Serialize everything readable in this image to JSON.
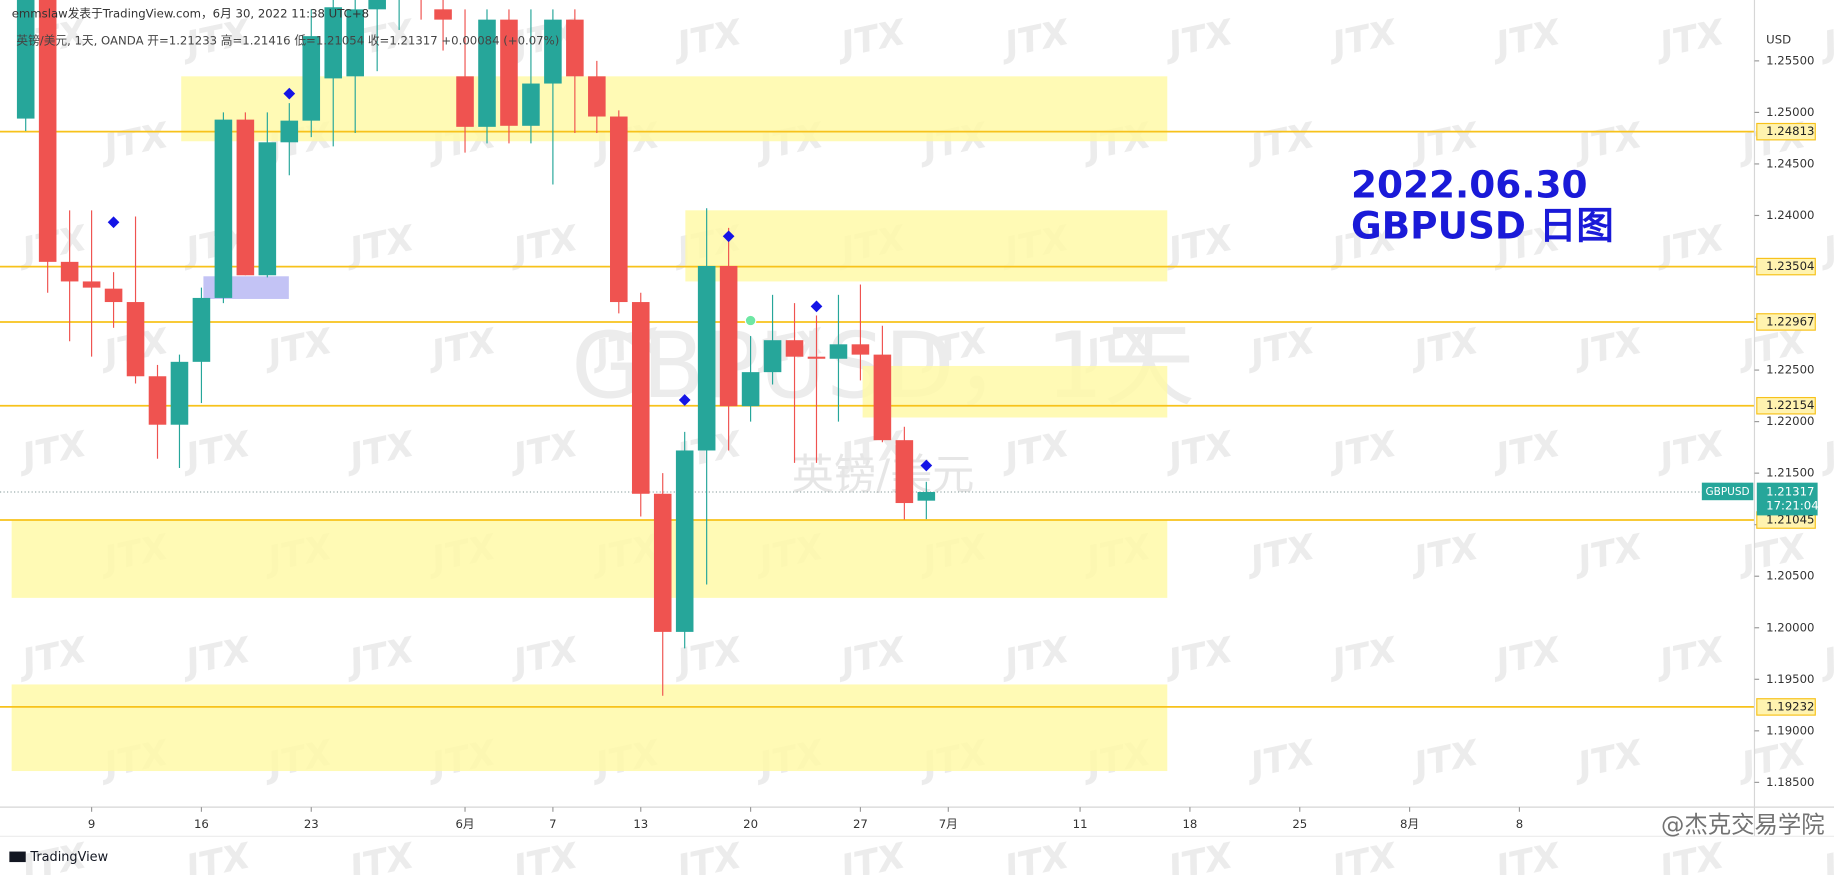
{
  "header": "emmslaw发表于TradingView.com，6月 30, 2022 11:38 UTC+8",
  "watermark_text": "JTX",
  "footer": {
    "brand": "TradingView",
    "credit": "@杰克交易学院"
  },
  "chart_data": {
    "type": "candlestick",
    "legend": "英镑/美元, 1天, OANDA  开=1.21233  高=1.21416  低=1.21054  收=1.21317  +0.00084 (+0.07%)",
    "watermark": [
      "GBPUSD，1天",
      "英镑/美元"
    ],
    "annotations": [
      "2022.06.30",
      "GBPUSD 日图"
    ],
    "axis_label": "USD",
    "open": [
      1.2494,
      1.262,
      1.2355,
      1.2336,
      1.2329,
      1.2316,
      1.2244,
      1.2197,
      1.2258,
      1.232,
      1.2493,
      1.2342,
      1.2471,
      1.2492,
      1.2533,
      1.2535,
      1.26,
      1.261,
      1.2627,
      1.26,
      1.2535,
      1.2486,
      1.259,
      1.2487,
      1.2528,
      1.259,
      1.2535,
      1.2496,
      1.2316,
      1.213,
      1.1996,
      1.2172,
      1.2351,
      1.2215,
      1.2248,
      1.2279,
      1.2263,
      1.2261,
      1.2275,
      1.2265,
      1.2182,
      1.21233
    ],
    "high": [
      1.2638,
      1.264,
      1.2405,
      1.2405,
      1.2345,
      1.2399,
      1.2255,
      1.2265,
      1.233,
      1.25,
      1.25,
      1.25,
      1.2509,
      1.26,
      1.2625,
      1.263,
      1.263,
      1.266,
      1.266,
      1.265,
      1.26,
      1.26,
      1.26,
      1.26,
      1.26,
      1.26,
      1.255,
      1.2502,
      1.2325,
      1.215,
      1.219,
      1.2407,
      1.2388,
      1.2283,
      1.2323,
      1.2315,
      1.2303,
      1.2323,
      1.2333,
      1.2293,
      1.2195,
      1.21416
    ],
    "low": [
      1.2482,
      1.2325,
      1.2278,
      1.2263,
      1.2291,
      1.2237,
      1.2164,
      1.2155,
      1.2218,
      1.2315,
      1.2342,
      1.234,
      1.2439,
      1.2476,
      1.2467,
      1.248,
      1.254,
      1.258,
      1.259,
      1.256,
      1.2461,
      1.247,
      1.247,
      1.247,
      1.243,
      1.248,
      1.248,
      1.2305,
      1.2108,
      1.1934,
      1.198,
      1.2042,
      1.2172,
      1.22,
      1.2236,
      1.216,
      1.216,
      1.22,
      1.224,
      1.218,
      1.2105,
      1.21054
    ],
    "close": [
      1.262,
      1.2355,
      1.2336,
      1.233,
      1.2316,
      1.2244,
      1.2197,
      1.2258,
      1.232,
      1.2493,
      1.2342,
      1.2471,
      1.2492,
      1.2574,
      1.2602,
      1.26,
      1.261,
      1.2627,
      1.262,
      1.259,
      1.2486,
      1.259,
      1.2487,
      1.2528,
      1.259,
      1.2535,
      1.2496,
      1.2316,
      1.213,
      1.1996,
      1.2172,
      1.2351,
      1.2215,
      1.2248,
      1.2279,
      1.2263,
      1.2261,
      1.2275,
      1.2265,
      1.2182,
      1.2121,
      1.21317
    ],
    "up_color": "#26a69a",
    "down_color": "#ef5350",
    "xlim": [
      -1.17,
      78.7
    ],
    "xticks": [
      {
        "value": 3,
        "label": "9"
      },
      {
        "value": 8,
        "label": "16"
      },
      {
        "value": 13,
        "label": "23"
      },
      {
        "value": 20,
        "label": "6月"
      },
      {
        "value": 24,
        "label": "7"
      },
      {
        "value": 28,
        "label": "13"
      },
      {
        "value": 33,
        "label": "20"
      },
      {
        "value": 38,
        "label": "27"
      },
      {
        "value": 42,
        "label": "7月"
      },
      {
        "value": 48,
        "label": "11"
      },
      {
        "value": 53,
        "label": "18"
      },
      {
        "value": 58,
        "label": "25"
      },
      {
        "value": 63,
        "label": "8月"
      },
      {
        "value": 68,
        "label": "8"
      }
    ],
    "ylim": [
      1.1826,
      1.2609
    ],
    "yticks": [
      {
        "value": 1.185,
        "label": "1.18500"
      },
      {
        "value": 1.19,
        "label": "1.19000"
      },
      {
        "value": 1.195,
        "label": "1.19500"
      },
      {
        "value": 1.2,
        "label": "1.20000"
      },
      {
        "value": 1.205,
        "label": "1.20500"
      },
      {
        "value": 1.21,
        "label": "1.21000"
      },
      {
        "value": 1.215,
        "label": "1.21500"
      },
      {
        "value": 1.22,
        "label": "1.22000"
      },
      {
        "value": 1.225,
        "label": "1.22500"
      },
      {
        "value": 1.23,
        "label": "1.23000"
      },
      {
        "value": 1.235,
        "label": "1.23500"
      },
      {
        "value": 1.24,
        "label": "1.24000"
      },
      {
        "value": 1.245,
        "label": "1.24500"
      },
      {
        "value": 1.25,
        "label": "1.25000"
      },
      {
        "value": 1.255,
        "label": "1.25500"
      }
    ],
    "levels": {
      "values": [
        1.24813,
        1.23504,
        1.22967,
        1.22154,
        1.21045,
        1.19232
      ],
      "color": "#f7c21b"
    },
    "zones": [
      {
        "x": [
          7.08,
          51.97
        ],
        "y": [
          1.2472,
          1.2535
        ]
      },
      {
        "x": [
          30.03,
          51.97
        ],
        "y": [
          1.2336,
          1.2405
        ]
      },
      {
        "x": [
          38.1,
          51.97
        ],
        "y": [
          1.2204,
          1.2254
        ]
      },
      {
        "x": [
          -0.64,
          51.97
        ],
        "y": [
          1.2029,
          1.2105
        ]
      },
      {
        "x": [
          -0.64,
          51.97
        ],
        "y": [
          1.1861,
          1.1945
        ]
      }
    ],
    "zone_color": "#fff9a8",
    "box": {
      "x": [
        8.09,
        11.98
      ],
      "y": [
        1.2319,
        1.2341
      ],
      "color": "#b9b8f3"
    },
    "markers": {
      "x": [
        4,
        12,
        32,
        30,
        36,
        41
      ],
      "y": [
        1.23934,
        1.25182,
        1.23798,
        1.2221,
        1.23118,
        1.21574
      ],
      "color": "#1414e6"
    },
    "signal": {
      "x": 33,
      "y": 1.22981,
      "color": "#6ee7a4"
    },
    "last": {
      "name": "GBPUSD",
      "value": 1.21317,
      "countdown": "17:21:04",
      "color": "#26a69a"
    }
  }
}
